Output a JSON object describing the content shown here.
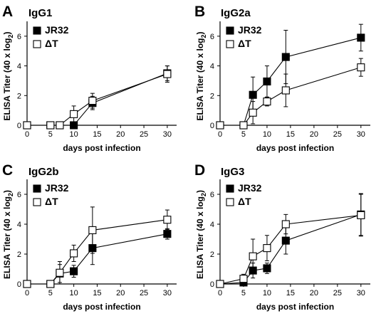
{
  "chart_data": [
    {
      "type": "line",
      "panel": "A",
      "title": "IgG1",
      "xlabel": "days post infection",
      "ylabel": "ELISA Titer (40 x log2)",
      "xlim": [
        0,
        32
      ],
      "ylim": [
        0,
        7
      ],
      "xticks": [
        0,
        5,
        10,
        15,
        20,
        25,
        30
      ],
      "yticks": [
        0,
        2,
        4,
        6
      ],
      "legend_position": "top-left",
      "series": [
        {
          "name": "JR32",
          "marker": "filled-square",
          "color": "#000000",
          "x": [
            0,
            5,
            7,
            10,
            14,
            30
          ],
          "y": [
            0,
            0,
            0,
            0,
            1.5,
            3.5
          ],
          "err": [
            0,
            0,
            0,
            0,
            0.45,
            0.5
          ]
        },
        {
          "name": "ΔT",
          "marker": "open-square",
          "color": "#000000",
          "x": [
            0,
            5,
            7,
            10,
            14,
            30
          ],
          "y": [
            0,
            0,
            0,
            0.75,
            1.65,
            3.45
          ],
          "err": [
            0,
            0,
            0,
            0.55,
            0.5,
            0.55
          ]
        }
      ]
    },
    {
      "type": "line",
      "panel": "B",
      "title": "IgG2a",
      "xlabel": "days post infection",
      "ylabel": "ELISA Titer (40 x log2)",
      "xlim": [
        0,
        32
      ],
      "ylim": [
        0,
        7
      ],
      "xticks": [
        0,
        5,
        10,
        15,
        20,
        25,
        30
      ],
      "yticks": [
        0,
        2,
        4,
        6
      ],
      "legend_position": "top-left",
      "series": [
        {
          "name": "JR32",
          "marker": "filled-square",
          "color": "#000000",
          "x": [
            0,
            5,
            7,
            10,
            14,
            30
          ],
          "y": [
            0,
            0,
            2.05,
            2.95,
            4.6,
            5.9
          ],
          "err": [
            0,
            0,
            1.2,
            1.05,
            1.8,
            0.9
          ]
        },
        {
          "name": "ΔT",
          "marker": "open-square",
          "color": "#000000",
          "x": [
            0,
            5,
            7,
            10,
            14,
            30
          ],
          "y": [
            0,
            0,
            0.85,
            1.6,
            2.35,
            3.9
          ],
          "err": [
            0,
            0,
            0.75,
            0.3,
            1.1,
            0.6
          ]
        }
      ]
    },
    {
      "type": "line",
      "panel": "C",
      "title": "IgG2b",
      "xlabel": "days post infection",
      "ylabel": "ELISA Titer (40 x log2)",
      "xlim": [
        0,
        32
      ],
      "ylim": [
        0,
        7
      ],
      "xticks": [
        0,
        5,
        10,
        15,
        20,
        25,
        30
      ],
      "yticks": [
        0,
        2,
        4,
        6
      ],
      "legend_position": "top-left",
      "series": [
        {
          "name": "JR32",
          "marker": "filled-square",
          "color": "#000000",
          "x": [
            0,
            5,
            7,
            10,
            14,
            30
          ],
          "y": [
            0,
            0,
            0.7,
            0.85,
            2.4,
            3.35
          ],
          "err": [
            0,
            0,
            0.6,
            0.4,
            1.1,
            0.35
          ]
        },
        {
          "name": "ΔT",
          "marker": "open-square",
          "color": "#000000",
          "x": [
            0,
            5,
            7,
            10,
            14,
            30
          ],
          "y": [
            0,
            0,
            0.75,
            2.05,
            3.6,
            4.3
          ],
          "err": [
            0,
            0,
            0.75,
            0.55,
            1.55,
            0.65
          ]
        }
      ]
    },
    {
      "type": "line",
      "panel": "D",
      "title": "IgG3",
      "xlabel": "days post infection",
      "ylabel": "ELISA Titer (40 x log2)",
      "xlim": [
        0,
        32
      ],
      "ylim": [
        0,
        7
      ],
      "xticks": [
        0,
        5,
        10,
        15,
        20,
        25,
        30
      ],
      "yticks": [
        0,
        2,
        4,
        6
      ],
      "legend_position": "top-left",
      "series": [
        {
          "name": "JR32",
          "marker": "filled-square",
          "color": "#000000",
          "x": [
            0,
            5,
            7,
            10,
            14,
            30
          ],
          "y": [
            0,
            0.1,
            0.9,
            1.05,
            2.9,
            4.65
          ],
          "err": [
            0,
            0.2,
            0.5,
            0.35,
            0.9,
            1.4
          ]
        },
        {
          "name": "ΔT",
          "marker": "open-square",
          "color": "#000000",
          "x": [
            0,
            5,
            7,
            10,
            14,
            30
          ],
          "y": [
            0,
            0.35,
            1.85,
            2.4,
            4.0,
            4.6
          ],
          "err": [
            0,
            0.3,
            1.15,
            0.85,
            0.65,
            1.4
          ]
        }
      ]
    }
  ]
}
